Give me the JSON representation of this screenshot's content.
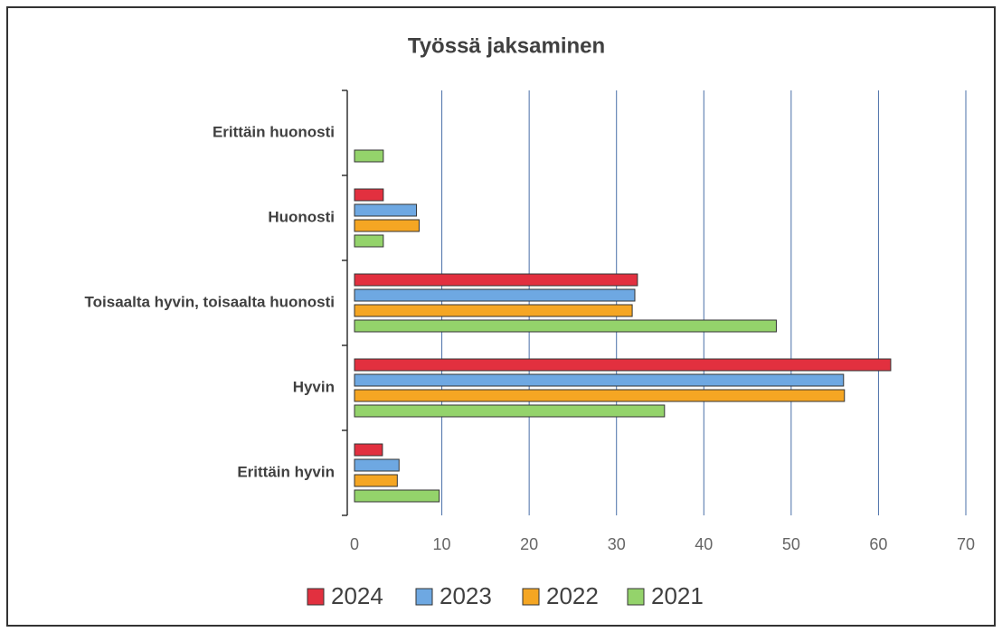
{
  "chart_data": {
    "type": "bar",
    "orientation": "horizontal",
    "title": "Työssä jaksaminen",
    "categories": [
      "Erittäin huonosti",
      "Huonosti",
      "Toisaalta hyvin, toisaalta huonosti",
      "Hyvin",
      "Erittäin hyvin"
    ],
    "series": [
      {
        "name": "2024",
        "color": "#e2303f",
        "values": [
          0,
          3.3,
          32.4,
          61.4,
          3.2
        ]
      },
      {
        "name": "2023",
        "color": "#6ea8e2",
        "values": [
          0,
          7.1,
          32.1,
          56.0,
          5.1
        ]
      },
      {
        "name": "2022",
        "color": "#f5a623",
        "values": [
          0,
          7.4,
          31.8,
          56.1,
          4.9
        ]
      },
      {
        "name": "2021",
        "color": "#94d36b",
        "values": [
          3.3,
          3.3,
          48.3,
          35.5,
          9.7
        ]
      }
    ],
    "xlim": [
      0,
      70
    ],
    "xticks": [
      0,
      10,
      20,
      30,
      40,
      50,
      60,
      70
    ],
    "grid": true,
    "legend": "bottom"
  }
}
